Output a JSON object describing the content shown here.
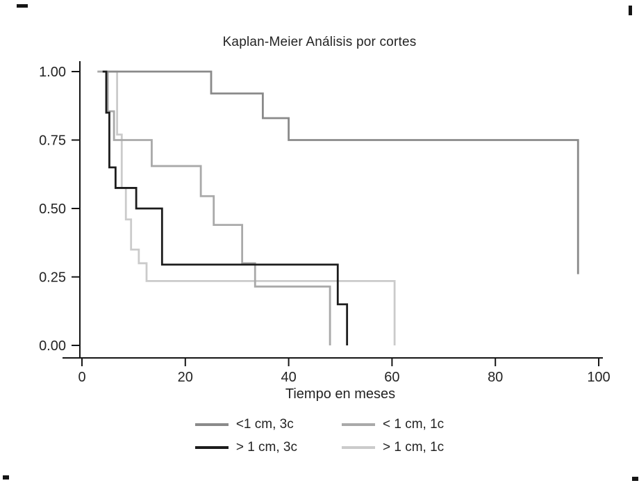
{
  "chart_data": {
    "type": "line",
    "subtype": "kaplan-meier-step",
    "title": "Kaplan-Meier Análisis por cortes",
    "xlabel": "Tiempo en meses",
    "ylabel": "",
    "xlim": [
      0,
      100
    ],
    "ylim": [
      0,
      1.0
    ],
    "grid": false,
    "legend_position": "bottom",
    "xticks": [
      {
        "value": 0,
        "label": "0"
      },
      {
        "value": 20,
        "label": "20"
      },
      {
        "value": 40,
        "label": "40"
      },
      {
        "value": 60,
        "label": "60"
      },
      {
        "value": 80,
        "label": "80"
      },
      {
        "value": 100,
        "label": "100"
      }
    ],
    "yticks": [
      {
        "value": 1.0,
        "label": "1.00"
      },
      {
        "value": 0.75,
        "label": "0.75"
      },
      {
        "value": 0.5,
        "label": "0.50"
      },
      {
        "value": 0.25,
        "label": "0.25"
      },
      {
        "value": 0.0,
        "label": "0.00"
      }
    ],
    "series": [
      {
        "name": "<1 cm, 3c",
        "color": "#8a8a8a",
        "points": [
          [
            4,
            1.0
          ],
          [
            25,
            0.92
          ],
          [
            35,
            0.83
          ],
          [
            40,
            0.75
          ],
          [
            96,
            0.26
          ]
        ]
      },
      {
        "name": "< 1 cm, 1c",
        "color": "#a9a9a9",
        "points": [
          [
            3,
            1.0
          ],
          [
            5,
            0.855
          ],
          [
            6.2,
            0.75
          ],
          [
            13.5,
            0.655
          ],
          [
            23,
            0.545
          ],
          [
            25.5,
            0.44
          ],
          [
            31,
            0.3
          ],
          [
            33.5,
            0.215
          ],
          [
            48,
            0.0
          ]
        ]
      },
      {
        "name": "> 1 cm, 3c",
        "color": "#1c1c1c",
        "points": [
          [
            4,
            1.0
          ],
          [
            4.7,
            0.85
          ],
          [
            5.3,
            0.65
          ],
          [
            6.5,
            0.575
          ],
          [
            10.5,
            0.5
          ],
          [
            15.5,
            0.295
          ],
          [
            49.5,
            0.15
          ],
          [
            51.3,
            0.0
          ]
        ]
      },
      {
        "name": "> 1 cm, 1c",
        "color": "#cbcbcb",
        "points": [
          [
            3,
            1.0
          ],
          [
            6.8,
            0.77
          ],
          [
            7.7,
            0.575
          ],
          [
            8.5,
            0.46
          ],
          [
            9.5,
            0.35
          ],
          [
            11,
            0.3
          ],
          [
            12.5,
            0.235
          ],
          [
            60.5,
            0.0
          ]
        ]
      }
    ]
  }
}
